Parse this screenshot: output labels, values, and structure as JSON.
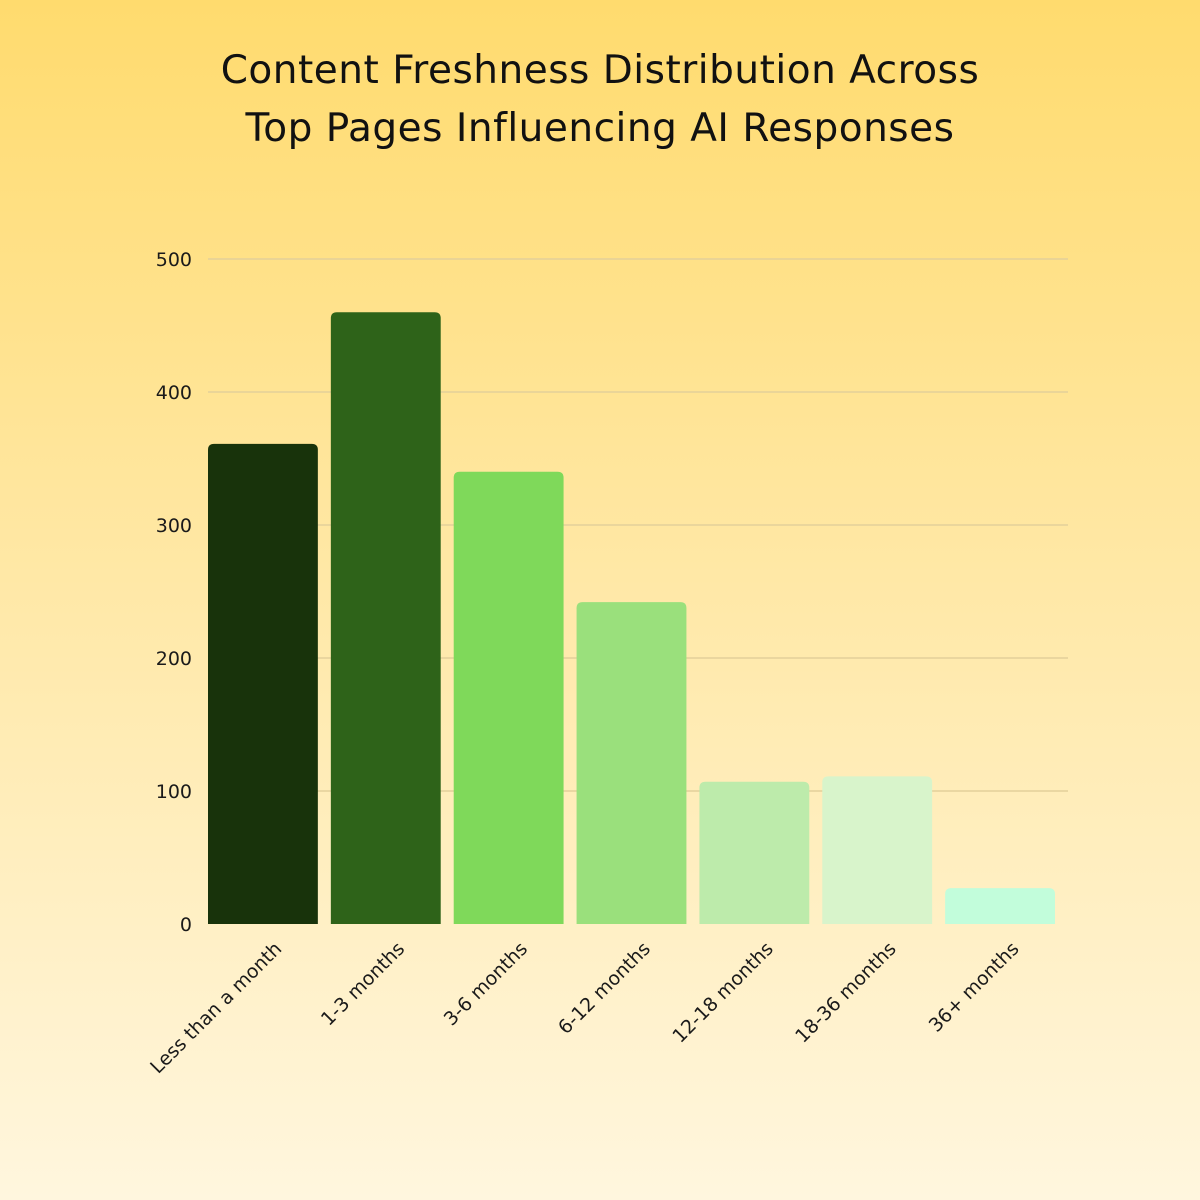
{
  "chart_data": {
    "type": "bar",
    "title_lines": [
      "Content Freshness Distribution Across",
      "Top Pages Influencing AI Responses"
    ],
    "categories": [
      "Less than a month",
      "1-3 months",
      "3-6 months",
      "6-12 months",
      "12-18 months",
      "18-36 months",
      "36+ months"
    ],
    "values": [
      361,
      460,
      340,
      242,
      107,
      111,
      27
    ],
    "colors": [
      "#18330B",
      "#2E6319",
      "#7FD95A",
      "#9AE07C",
      "#BDEBAB",
      "#D8F4CB",
      "#C2FDDB"
    ],
    "ylim": [
      0,
      500
    ],
    "yticks": [
      0,
      100,
      200,
      300,
      400,
      500
    ],
    "grid": true,
    "legend": "none",
    "xlabel": "",
    "ylabel": ""
  }
}
